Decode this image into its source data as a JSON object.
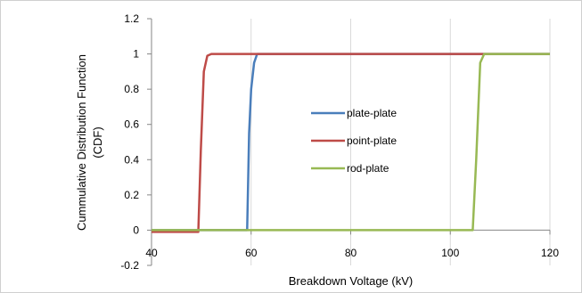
{
  "chart_data": {
    "type": "line",
    "title": "",
    "xlabel": "Breakdown Voltage (kV)",
    "ylabel_line1": "Cummulative Distribution Function",
    "ylabel_line2": "(CDF)",
    "xlim": [
      40,
      120
    ],
    "ylim": [
      -0.2,
      1.2
    ],
    "x_ticks": [
      40,
      60,
      80,
      100,
      120
    ],
    "y_ticks": [
      -0.2,
      0,
      0.2,
      0.4,
      0.6,
      0.8,
      1,
      1.2
    ],
    "x_tick_labels": [
      "40",
      "60",
      "80",
      "100",
      "120"
    ],
    "y_tick_labels": [
      "-0.2",
      "0",
      "0.2",
      "0.4",
      "0.6",
      "0.8",
      "1",
      "1.2"
    ],
    "grid": "vertical",
    "legend_position": "center",
    "series": [
      {
        "name": "plate-plate",
        "color": "#4a7ebb",
        "points": [
          [
            40,
            0
          ],
          [
            59.2,
            0
          ],
          [
            59.6,
            0.55
          ],
          [
            60.0,
            0.8
          ],
          [
            60.6,
            0.95
          ],
          [
            61.2,
            1.0
          ],
          [
            120,
            1.0
          ]
        ]
      },
      {
        "name": "point-plate",
        "color": "#be4b48",
        "points": [
          [
            40,
            -0.01
          ],
          [
            49.4,
            -0.01
          ],
          [
            49.9,
            0.45
          ],
          [
            50.5,
            0.9
          ],
          [
            51.2,
            0.99
          ],
          [
            52.0,
            1.0
          ],
          [
            120,
            1.0
          ]
        ]
      },
      {
        "name": "rod-plate",
        "color": "#98b954",
        "points": [
          [
            40,
            0
          ],
          [
            104.5,
            0
          ],
          [
            105.2,
            0.4
          ],
          [
            106.0,
            0.95
          ],
          [
            106.8,
            1.0
          ],
          [
            120,
            1.0
          ]
        ]
      }
    ]
  }
}
